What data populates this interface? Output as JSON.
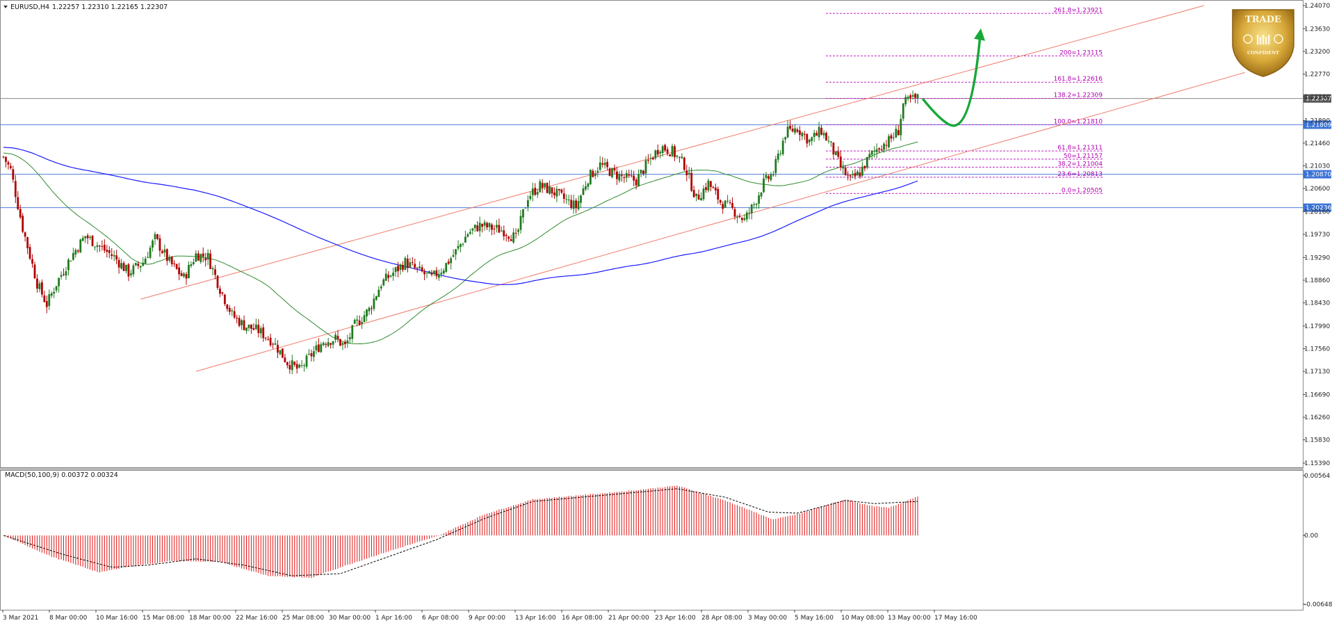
{
  "header": {
    "symbol_label": "EURUSD,H4",
    "ohlc_label": "1.22257 1.22310 1.22165 1.22307",
    "menu_icon": "triangle-down-icon"
  },
  "indicator": {
    "label": "MACD(50,100,9) 0.00372 0.00324"
  },
  "logo": {
    "line1": "TRADE",
    "line2": "CONFIDENT",
    "icon": "gold-shield-logo-icon"
  },
  "colors": {
    "bull": "#1f7a1f",
    "bear": "#b00000",
    "ma_fast": "#2e8b2e",
    "ma_slow": "#1a1aff",
    "channel": "#f07a6a",
    "fib": "#c020c0",
    "hline": "#4f7fd6",
    "arrow": "#18a83a",
    "macd_hist": "#e01010",
    "macd_signal": "#000000",
    "axis_tag_blue": "#3b73d6",
    "axis_tag_gray": "#555555"
  },
  "chart_data": [
    {
      "type": "candlestick",
      "title": "EURUSD,H4",
      "yaxis_ticks": [
        "1.24070",
        "1.23630",
        "1.23200",
        "1.22770",
        "1.22340",
        "1.21890",
        "1.21460",
        "1.21030",
        "1.20600",
        "1.20160",
        "1.19730",
        "1.19290",
        "1.18860",
        "1.18430",
        "1.17990",
        "1.17560",
        "1.17130",
        "1.16690",
        "1.16260",
        "1.15830",
        "1.15390"
      ],
      "ylim": [
        1.1539,
        1.2407
      ],
      "xaxis_ticks": [
        "3 Mar 2021",
        "8 Mar 00:00",
        "10 Mar 16:00",
        "15 Mar 08:00",
        "18 Mar 00:00",
        "22 Mar 16:00",
        "25 Mar 08:00",
        "30 Mar 00:00",
        "1 Apr 16:00",
        "6 Apr 08:00",
        "9 Apr 00:00",
        "13 Apr 16:00",
        "16 Apr 08:00",
        "21 Apr 00:00",
        "23 Apr 16:00",
        "28 Apr 08:00",
        "3 May 00:00",
        "5 May 16:00",
        "10 May 08:00",
        "13 May 00:00",
        "17 May 16:00"
      ],
      "price_path": [
        [
          0,
          1.212
        ],
        [
          3,
          1.2095
        ],
        [
          8,
          1.1985
        ],
        [
          14,
          1.188
        ],
        [
          18,
          1.184
        ],
        [
          22,
          1.188
        ],
        [
          28,
          1.193
        ],
        [
          34,
          1.197
        ],
        [
          40,
          1.195
        ],
        [
          46,
          1.193
        ],
        [
          52,
          1.19
        ],
        [
          58,
          1.192
        ],
        [
          63,
          1.1965
        ],
        [
          69,
          1.192
        ],
        [
          75,
          1.189
        ],
        [
          80,
          1.1935
        ],
        [
          85,
          1.193
        ],
        [
          90,
          1.187
        ],
        [
          95,
          1.182
        ],
        [
          100,
          1.18
        ],
        [
          106,
          1.179
        ],
        [
          112,
          1.177
        ],
        [
          118,
          1.173
        ],
        [
          123,
          1.1715
        ],
        [
          128,
          1.1745
        ],
        [
          133,
          1.177
        ],
        [
          138,
          1.1775
        ],
        [
          142,
          1.176
        ],
        [
          146,
          1.18
        ],
        [
          152,
          1.183
        ],
        [
          157,
          1.188
        ],
        [
          162,
          1.19
        ],
        [
          167,
          1.192
        ],
        [
          172,
          1.1905
        ],
        [
          178,
          1.189
        ],
        [
          183,
          1.191
        ],
        [
          188,
          1.194
        ],
        [
          193,
          1.1975
        ],
        [
          198,
          1.199
        ],
        [
          203,
          1.1985
        ],
        [
          208,
          1.198
        ],
        [
          213,
          1.1965
        ],
        [
          218,
          1.2045
        ],
        [
          223,
          1.2065
        ],
        [
          228,
          1.2055
        ],
        [
          233,
          1.204
        ],
        [
          238,
          1.2025
        ],
        [
          243,
          1.208
        ],
        [
          248,
          1.2105
        ],
        [
          253,
          1.209
        ],
        [
          258,
          1.208
        ],
        [
          263,
          1.2075
        ],
        [
          268,
          1.211
        ],
        [
          273,
          1.214
        ],
        [
          278,
          1.213
        ],
        [
          283,
          1.2105
        ],
        [
          288,
          1.204
        ],
        [
          293,
          1.207
        ],
        [
          298,
          1.2035
        ],
        [
          303,
          1.202
        ],
        [
          308,
          1.2
        ],
        [
          312,
          1.203
        ],
        [
          316,
          1.207
        ],
        [
          320,
          1.209
        ],
        [
          325,
          1.2165
        ],
        [
          330,
          1.2175
        ],
        [
          335,
          1.215
        ],
        [
          340,
          1.217
        ],
        [
          344,
          1.214
        ],
        [
          348,
          1.21
        ],
        [
          352,
          1.2075
        ],
        [
          356,
          1.209
        ],
        [
          360,
          1.212
        ],
        [
          364,
          1.214
        ],
        [
          368,
          1.215
        ],
        [
          372,
          1.217
        ],
        [
          374,
          1.222
        ],
        [
          377,
          1.2228
        ],
        [
          380,
          1.2231
        ]
      ],
      "candle_count": 381,
      "series": [
        {
          "name": "MA fast",
          "color": "#2e8b2e"
        },
        {
          "name": "MA slow",
          "color": "#1a1aff"
        }
      ],
      "horizontal_levels": [
        {
          "value": 1.22307,
          "label": "1.22307",
          "color": "#555555"
        },
        {
          "value": 1.21809,
          "label": "1.21809",
          "color": "#3b73d6"
        },
        {
          "value": 1.2087,
          "label": "1.20870",
          "color": "#3b73d6"
        },
        {
          "value": 1.20236,
          "label": "1.20236",
          "color": "#3b73d6"
        }
      ],
      "fibonacci": [
        {
          "label": "261.8=1.23921",
          "value": 1.23921
        },
        {
          "label": "200=1.23115",
          "value": 1.23115
        },
        {
          "label": "161.8=1.22616",
          "value": 1.22616
        },
        {
          "label": "138.2=1.22309",
          "value": 1.22309
        },
        {
          "label": "100.0=1.21810",
          "value": 1.2181
        },
        {
          "label": "61.8=1.21311",
          "value": 1.21311
        },
        {
          "label": "50=1.21157",
          "value": 1.21157
        },
        {
          "label": "38.2=1.21004",
          "value": 1.21004
        },
        {
          "label": "23.6=1.20813",
          "value": 1.20813
        },
        {
          "label": "0.0=1.20505",
          "value": 1.20505
        }
      ],
      "channel_lines": [
        {
          "from": [
            1.185,
            57
          ],
          "to": [
            1.2407,
            499
          ]
        },
        {
          "from": [
            1.1713,
            80
          ],
          "to": [
            1.228,
            516
          ]
        }
      ],
      "projection_arrow": "up from 1.2230 via dip near 1.2180 to 1.2350"
    },
    {
      "type": "histogram",
      "title": "MACD(50,100,9) 0.00372 0.00324",
      "yaxis_ticks": [
        "0.00564",
        "0.00",
        "-0.00648"
      ],
      "ylim": [
        -0.00648,
        0.00564
      ],
      "histogram_path": [
        [
          0,
          0.0
        ],
        [
          20,
          -0.002
        ],
        [
          40,
          -0.0035
        ],
        [
          50,
          -0.003
        ],
        [
          70,
          -0.0024
        ],
        [
          90,
          -0.0025
        ],
        [
          110,
          -0.0038
        ],
        [
          128,
          -0.004
        ],
        [
          140,
          -0.003
        ],
        [
          160,
          -0.0015
        ],
        [
          180,
          -0.0001
        ],
        [
          200,
          0.002
        ],
        [
          220,
          0.0034
        ],
        [
          240,
          0.0038
        ],
        [
          260,
          0.0042
        ],
        [
          280,
          0.0047
        ],
        [
          300,
          0.0033
        ],
        [
          320,
          0.0015
        ],
        [
          330,
          0.002
        ],
        [
          350,
          0.0034
        ],
        [
          360,
          0.0028
        ],
        [
          368,
          0.0026
        ],
        [
          380,
          0.0037
        ]
      ],
      "signal_path": [
        [
          0,
          0.0
        ],
        [
          25,
          -0.0018
        ],
        [
          45,
          -0.003
        ],
        [
          60,
          -0.0028
        ],
        [
          80,
          -0.0022
        ],
        [
          100,
          -0.0028
        ],
        [
          120,
          -0.0038
        ],
        [
          140,
          -0.0036
        ],
        [
          160,
          -0.002
        ],
        [
          180,
          -0.0004
        ],
        [
          200,
          0.0016
        ],
        [
          220,
          0.0032
        ],
        [
          240,
          0.0036
        ],
        [
          260,
          0.004
        ],
        [
          280,
          0.0044
        ],
        [
          300,
          0.0036
        ],
        [
          318,
          0.0022
        ],
        [
          330,
          0.0021
        ],
        [
          350,
          0.0033
        ],
        [
          362,
          0.003
        ],
        [
          380,
          0.0032
        ]
      ]
    }
  ]
}
